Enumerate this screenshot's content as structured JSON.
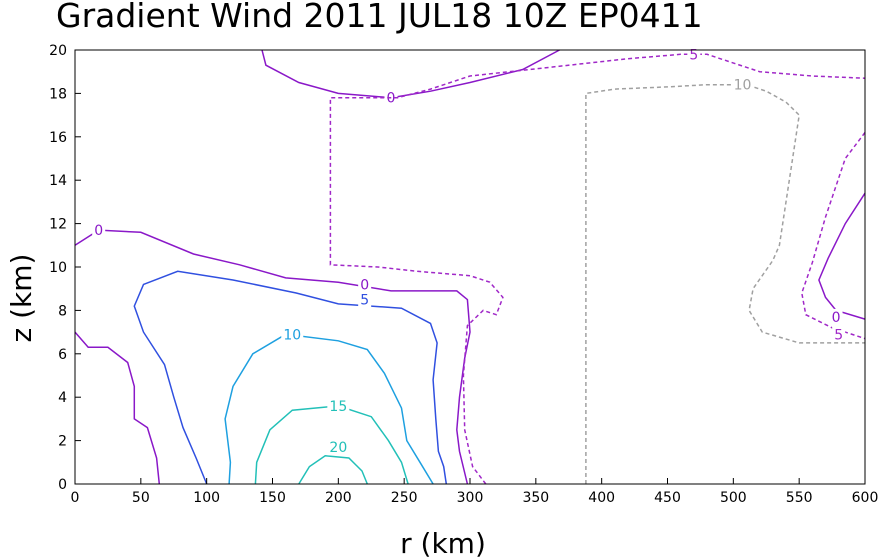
{
  "chart_data": {
    "type": "contour",
    "title": "Gradient Wind 2011 JUL18 10Z  EP0411",
    "xlabel": "r (km)",
    "ylabel": "z (km)",
    "xlim": [
      0,
      600
    ],
    "ylim": [
      0,
      20
    ],
    "x_ticks": [
      0,
      50,
      100,
      150,
      200,
      250,
      300,
      350,
      400,
      450,
      500,
      550,
      600
    ],
    "y_ticks": [
      0,
      2,
      4,
      6,
      8,
      10,
      12,
      14,
      16,
      18,
      20
    ],
    "grid": false,
    "contours": [
      {
        "level": 20,
        "label": "20",
        "color": "#22c0b8",
        "dashed": false,
        "lines": [
          [
            [
              170,
              0
            ],
            [
              178,
              0.8
            ],
            [
              190,
              1.3
            ],
            [
              208,
              1.2
            ],
            [
              218,
              0.6
            ],
            [
              222,
              0
            ]
          ]
        ],
        "label_at": [
          200,
          1.7
        ]
      },
      {
        "level": 15,
        "label": "15",
        "color": "#22c0b8",
        "dashed": false,
        "lines": [
          [
            [
              137,
              0
            ],
            [
              138,
              1.0
            ],
            [
              148,
              2.5
            ],
            [
              165,
              3.4
            ],
            [
              200,
              3.6
            ],
            [
              225,
              3.1
            ],
            [
              238,
              2.0
            ],
            [
              248,
              1.0
            ],
            [
              253,
              0
            ]
          ]
        ],
        "label_at": [
          200,
          3.6
        ]
      },
      {
        "level": 10,
        "label": "10",
        "color": "#1ea0e0",
        "dashed": false,
        "lines": [
          [
            [
              117,
              0
            ],
            [
              118,
              1.0
            ],
            [
              114,
              3.0
            ],
            [
              120,
              4.5
            ],
            [
              135,
              6.0
            ],
            [
              160,
              6.9
            ],
            [
              200,
              6.6
            ],
            [
              222,
              6.2
            ],
            [
              235,
              5.1
            ],
            [
              248,
              3.5
            ],
            [
              252,
              2.0
            ],
            [
              262,
              1.0
            ],
            [
              272,
              0
            ]
          ]
        ],
        "label_at": [
          165,
          6.9
        ]
      },
      {
        "level": 5,
        "label": "5",
        "color": "#3050e0",
        "dashed": false,
        "lines": [
          [
            [
              100,
              0
            ],
            [
              92,
              1.2
            ],
            [
              82,
              2.6
            ],
            [
              75,
              4.0
            ],
            [
              68,
              5.5
            ],
            [
              52,
              7.0
            ],
            [
              45,
              8.2
            ],
            [
              52,
              9.2
            ],
            [
              78,
              9.8
            ],
            [
              120,
              9.4
            ],
            [
              168,
              8.8
            ],
            [
              200,
              8.3
            ],
            [
              248,
              8.1
            ],
            [
              270,
              7.4
            ],
            [
              275,
              6.5
            ],
            [
              272,
              4.8
            ],
            [
              274,
              3.0
            ],
            [
              276,
              1.5
            ],
            [
              280,
              0.8
            ],
            [
              282,
              0
            ]
          ]
        ],
        "label_at": [
          220,
          8.5
        ]
      },
      {
        "level": 0,
        "label": "0",
        "color": "#8a18c8",
        "dashed": false,
        "lines": [
          [
            [
              0,
              7.0
            ],
            [
              10,
              6.3
            ],
            [
              25,
              6.3
            ],
            [
              40,
              5.6
            ],
            [
              45,
              4.5
            ],
            [
              45,
              3.0
            ],
            [
              55,
              2.6
            ],
            [
              62,
              1.2
            ],
            [
              64,
              0
            ]
          ],
          [
            [
              0,
              11.0
            ],
            [
              18,
              11.7
            ],
            [
              50,
              11.6
            ],
            [
              90,
              10.6
            ],
            [
              125,
              10.1
            ],
            [
              160,
              9.5
            ],
            [
              200,
              9.3
            ],
            [
              240,
              8.9
            ],
            [
              290,
              8.9
            ],
            [
              298,
              8.5
            ],
            [
              300,
              7.0
            ],
            [
              296,
              5.8
            ],
            [
              292,
              4.0
            ],
            [
              290,
              2.5
            ],
            [
              292,
              1.5
            ],
            [
              298,
              0
            ]
          ],
          [
            [
              142,
              20
            ],
            [
              145,
              19.3
            ],
            [
              170,
              18.5
            ],
            [
              200,
              18.0
            ],
            [
              240,
              17.8
            ],
            [
              270,
              18.1
            ],
            [
              300,
              18.5
            ],
            [
              340,
              19.1
            ],
            [
              368,
              20
            ]
          ],
          [
            [
              600,
              13.4
            ],
            [
              585,
              12.0
            ],
            [
              572,
              10.4
            ],
            [
              565,
              9.4
            ],
            [
              570,
              8.6
            ],
            [
              578,
              8.0
            ],
            [
              600,
              7.6
            ]
          ]
        ],
        "label_at": [
          [
            18,
            11.7
          ],
          [
            220,
            9.2
          ],
          [
            240,
            17.8
          ],
          [
            578,
            7.7
          ]
        ]
      },
      {
        "level": -5,
        "label": "5",
        "color": "#a028c8",
        "dashed": true,
        "lines": [
          [
            [
              312,
              0
            ],
            [
              302,
              0.8
            ],
            [
              296,
              2.5
            ],
            [
              295,
              5.0
            ],
            [
              298,
              7.3
            ],
            [
              310,
              8.0
            ],
            [
              320,
              7.8
            ],
            [
              325,
              8.6
            ],
            [
              315,
              9.3
            ],
            [
              300,
              9.6
            ],
            [
              260,
              9.8
            ],
            [
              230,
              10.0
            ],
            [
              194,
              10.1
            ],
            [
              194,
              17.8
            ],
            [
              210,
              17.8
            ],
            [
              245,
              17.8
            ],
            [
              270,
              18.2
            ],
            [
              300,
              18.8
            ],
            [
              360,
              19.2
            ],
            [
              420,
              19.6
            ],
            [
              460,
              19.8
            ],
            [
              480,
              19.8
            ],
            [
              520,
              19.0
            ],
            [
              560,
              18.8
            ],
            [
              600,
              18.7
            ]
          ],
          [
            [
              600,
              16.2
            ],
            [
              585,
              15.0
            ],
            [
              570,
              12.3
            ],
            [
              560,
              10.2
            ],
            [
              552,
              8.8
            ],
            [
              555,
              7.8
            ],
            [
              575,
              7.2
            ],
            [
              600,
              6.7
            ]
          ]
        ],
        "label_at": [
          [
            470,
            19.8
          ],
          [
            580,
            6.9
          ]
        ]
      },
      {
        "level": -10,
        "label": "10",
        "color": "#a0a0a0",
        "dashed": true,
        "lines": [
          [
            [
              388,
              0
            ],
            [
              388,
              18.0
            ],
            [
              410,
              18.2
            ],
            [
              450,
              18.3
            ],
            [
              480,
              18.4
            ],
            [
              510,
              18.4
            ],
            [
              525,
              18.1
            ],
            [
              540,
              17.6
            ],
            [
              550,
              17.0
            ],
            [
              545,
              15.0
            ],
            [
              540,
              13.0
            ],
            [
              535,
              11.0
            ],
            [
              530,
              10.3
            ],
            [
              515,
              9.0
            ],
            [
              512,
              8.0
            ],
            [
              522,
              7.0
            ],
            [
              550,
              6.5
            ],
            [
              600,
              6.5
            ]
          ]
        ],
        "label_at": [
          507,
          18.4
        ]
      }
    ]
  }
}
